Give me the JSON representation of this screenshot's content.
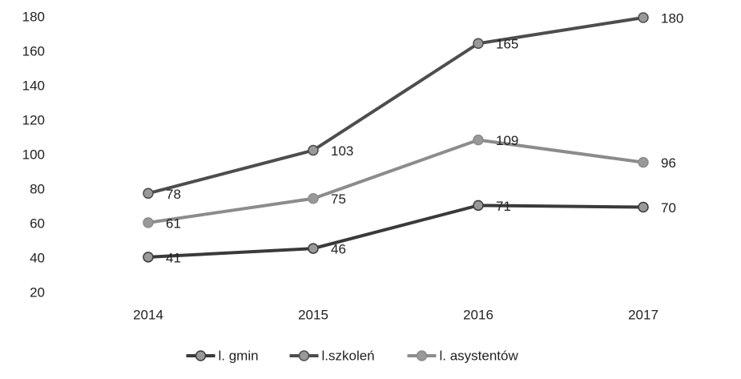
{
  "chart_data": {
    "type": "line",
    "categories": [
      "2014",
      "2015",
      "2016",
      "2017"
    ],
    "series": [
      {
        "name": "l. gmin",
        "color": "#3a3a3a",
        "values": [
          41,
          46,
          71,
          70
        ]
      },
      {
        "name": "l.szkoleń",
        "color": "#4d4d4d",
        "values": [
          78,
          103,
          165,
          180
        ]
      },
      {
        "name": "l. asystentów",
        "color": "#8c8c8c",
        "values": [
          61,
          75,
          109,
          96
        ]
      }
    ],
    "ylim": [
      20,
      180
    ],
    "yticks": [
      20,
      40,
      60,
      80,
      100,
      120,
      140,
      160,
      180
    ],
    "grid": false,
    "legend": "bottom"
  }
}
